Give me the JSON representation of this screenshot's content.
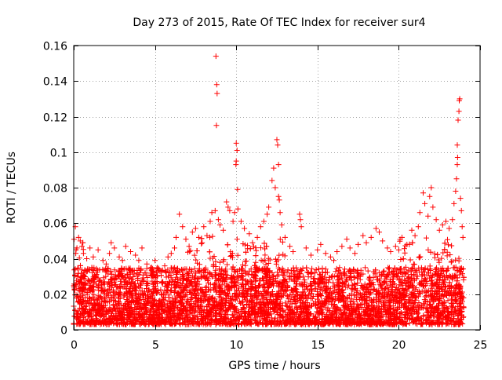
{
  "chart_data": {
    "type": "scatter",
    "title": "Day 273 of 2015, Rate Of TEC Index for receiver sur4",
    "xlabel": "GPS time / hours",
    "ylabel": "ROTI / TECUs",
    "xlim": [
      0,
      25
    ],
    "ylim": [
      0,
      0.16
    ],
    "xticks": [
      0,
      5,
      10,
      15,
      20,
      25
    ],
    "xtick_labels": [
      "0",
      "5",
      "10",
      "15",
      "20",
      "25"
    ],
    "yticks": [
      0,
      0.02,
      0.04,
      0.06,
      0.08,
      0.1,
      0.12,
      0.14,
      0.16
    ],
    "ytick_labels": [
      "0",
      "0.02",
      "0.04",
      "0.06",
      "0.08",
      "0.1",
      "0.12",
      "0.14",
      "0.16"
    ],
    "grid": true,
    "marker": "+",
    "color": "#ff0000",
    "series": [
      {
        "name": "ROTI",
        "points": [
          [
            0.1,
            0.058
          ],
          [
            0.2,
            0.046
          ],
          [
            0.3,
            0.052
          ],
          [
            0.4,
            0.05
          ],
          [
            0.5,
            0.047
          ],
          [
            0.6,
            0.043
          ],
          [
            0.8,
            0.04
          ],
          [
            1.0,
            0.046
          ],
          [
            1.2,
            0.041
          ],
          [
            1.5,
            0.045
          ],
          [
            1.8,
            0.039
          ],
          [
            2.0,
            0.037
          ],
          [
            2.2,
            0.043
          ],
          [
            2.3,
            0.049
          ],
          [
            2.5,
            0.046
          ],
          [
            2.8,
            0.041
          ],
          [
            3.0,
            0.039
          ],
          [
            3.2,
            0.047
          ],
          [
            3.5,
            0.044
          ],
          [
            3.8,
            0.042
          ],
          [
            4.0,
            0.039
          ],
          [
            4.2,
            0.046
          ],
          [
            4.5,
            0.037
          ],
          [
            4.8,
            0.035
          ],
          [
            5.0,
            0.039
          ],
          [
            5.3,
            0.033
          ],
          [
            5.6,
            0.036
          ],
          [
            5.8,
            0.041
          ],
          [
            6.0,
            0.043
          ],
          [
            6.2,
            0.046
          ],
          [
            6.3,
            0.052
          ],
          [
            6.5,
            0.065
          ],
          [
            6.7,
            0.058
          ],
          [
            6.9,
            0.051
          ],
          [
            7.1,
            0.047
          ],
          [
            7.3,
            0.055
          ],
          [
            7.5,
            0.057
          ],
          [
            7.7,
            0.052
          ],
          [
            7.9,
            0.049
          ],
          [
            8.0,
            0.058
          ],
          [
            8.2,
            0.053
          ],
          [
            8.4,
            0.061
          ],
          [
            8.5,
            0.066
          ],
          [
            8.7,
            0.067
          ],
          [
            8.75,
            0.154
          ],
          [
            8.8,
            0.138
          ],
          [
            8.82,
            0.133
          ],
          [
            8.78,
            0.115
          ],
          [
            8.9,
            0.062
          ],
          [
            9.0,
            0.059
          ],
          [
            9.2,
            0.056
          ],
          [
            9.4,
            0.072
          ],
          [
            9.5,
            0.069
          ],
          [
            9.6,
            0.067
          ],
          [
            9.8,
            0.061
          ],
          [
            9.9,
            0.066
          ],
          [
            10.0,
            0.105
          ],
          [
            10.05,
            0.101
          ],
          [
            10.0,
            0.095
          ],
          [
            9.98,
            0.093
          ],
          [
            10.08,
            0.079
          ],
          [
            10.1,
            0.068
          ],
          [
            10.3,
            0.061
          ],
          [
            10.5,
            0.057
          ],
          [
            10.8,
            0.054
          ],
          [
            11.0,
            0.049
          ],
          [
            11.3,
            0.052
          ],
          [
            11.5,
            0.058
          ],
          [
            11.7,
            0.061
          ],
          [
            11.9,
            0.065
          ],
          [
            12.0,
            0.069
          ],
          [
            12.2,
            0.084
          ],
          [
            12.3,
            0.091
          ],
          [
            12.4,
            0.08
          ],
          [
            12.5,
            0.107
          ],
          [
            12.55,
            0.104
          ],
          [
            12.6,
            0.093
          ],
          [
            12.6,
            0.075
          ],
          [
            12.65,
            0.073
          ],
          [
            12.7,
            0.066
          ],
          [
            12.8,
            0.059
          ],
          [
            13.0,
            0.052
          ],
          [
            13.3,
            0.047
          ],
          [
            13.5,
            0.044
          ],
          [
            13.9,
            0.065
          ],
          [
            13.95,
            0.062
          ],
          [
            14.0,
            0.058
          ],
          [
            14.3,
            0.046
          ],
          [
            14.6,
            0.042
          ],
          [
            15.0,
            0.045
          ],
          [
            15.2,
            0.048
          ],
          [
            15.5,
            0.043
          ],
          [
            15.8,
            0.041
          ],
          [
            16.0,
            0.039
          ],
          [
            16.2,
            0.044
          ],
          [
            16.5,
            0.047
          ],
          [
            16.8,
            0.051
          ],
          [
            17.0,
            0.046
          ],
          [
            17.3,
            0.043
          ],
          [
            17.5,
            0.048
          ],
          [
            17.8,
            0.053
          ],
          [
            18.0,
            0.049
          ],
          [
            18.3,
            0.052
          ],
          [
            18.6,
            0.057
          ],
          [
            18.8,
            0.055
          ],
          [
            19.0,
            0.05
          ],
          [
            19.3,
            0.046
          ],
          [
            19.5,
            0.044
          ],
          [
            19.8,
            0.047
          ],
          [
            20.0,
            0.045
          ],
          [
            20.2,
            0.052
          ],
          [
            20.5,
            0.048
          ],
          [
            20.8,
            0.056
          ],
          [
            21.0,
            0.053
          ],
          [
            21.2,
            0.058
          ],
          [
            21.3,
            0.066
          ],
          [
            21.5,
            0.077
          ],
          [
            21.6,
            0.071
          ],
          [
            21.8,
            0.064
          ],
          [
            21.9,
            0.075
          ],
          [
            22.0,
            0.08
          ],
          [
            22.1,
            0.069
          ],
          [
            22.3,
            0.062
          ],
          [
            22.5,
            0.056
          ],
          [
            22.7,
            0.059
          ],
          [
            22.9,
            0.061
          ],
          [
            23.1,
            0.057
          ],
          [
            23.3,
            0.062
          ],
          [
            23.4,
            0.071
          ],
          [
            23.5,
            0.078
          ],
          [
            23.55,
            0.085
          ],
          [
            23.6,
            0.093
          ],
          [
            23.62,
            0.097
          ],
          [
            23.6,
            0.104
          ],
          [
            23.65,
            0.118
          ],
          [
            23.7,
            0.123
          ],
          [
            23.72,
            0.129
          ],
          [
            23.75,
            0.13
          ],
          [
            23.8,
            0.074
          ],
          [
            23.85,
            0.067
          ],
          [
            23.9,
            0.058
          ],
          [
            23.95,
            0.052
          ]
        ]
      }
    ],
    "dense_band": {
      "description": "dense background cloud of points",
      "x_range": [
        0,
        24
      ],
      "typical_low": 0.003,
      "typical_high": 0.035
    }
  }
}
